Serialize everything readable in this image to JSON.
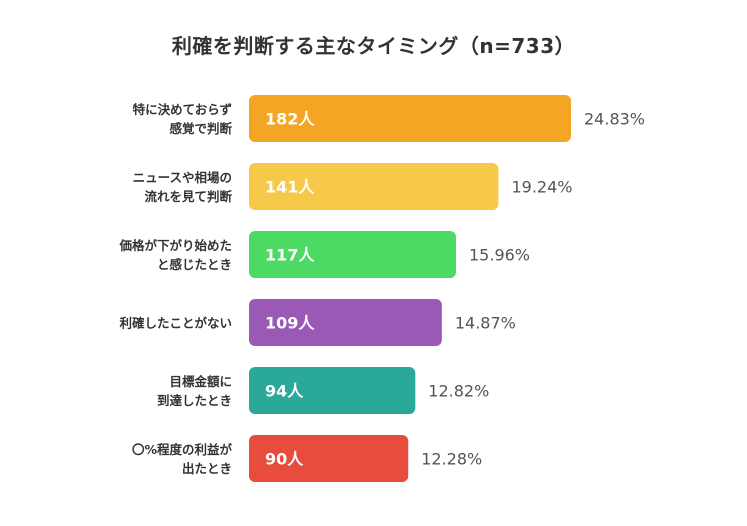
{
  "chart_data": {
    "type": "bar",
    "orientation": "horizontal",
    "title": "利確を判断する主なタイミング（n=733）",
    "xlabel": "",
    "ylabel": "",
    "unit_suffix": "人",
    "categories": [
      [
        "特に決めておらず",
        "感覚で判断"
      ],
      [
        "ニュースや相場の",
        "流れを見て判断"
      ],
      [
        "価格が下がり始めた",
        "と感じたとき"
      ],
      [
        "利確したことがない"
      ],
      [
        "目標金額に",
        "到達したとき"
      ],
      [
        "〇%程度の利益が",
        "出たとき"
      ]
    ],
    "values": [
      182,
      141,
      117,
      109,
      94,
      90
    ],
    "value_labels": [
      "182人",
      "141人",
      "117人",
      "109人",
      "94人",
      "90人"
    ],
    "percent_labels": [
      "24.83%",
      "19.24%",
      "15.96%",
      "14.87%",
      "12.82%",
      "12.28%"
    ],
    "colors": [
      "#F4A523",
      "#F6C94A",
      "#4CD964",
      "#9B59B6",
      "#2AA99B",
      "#E74C3C"
    ],
    "xlim": [
      0,
      182
    ],
    "grid": false,
    "legend": "none"
  }
}
